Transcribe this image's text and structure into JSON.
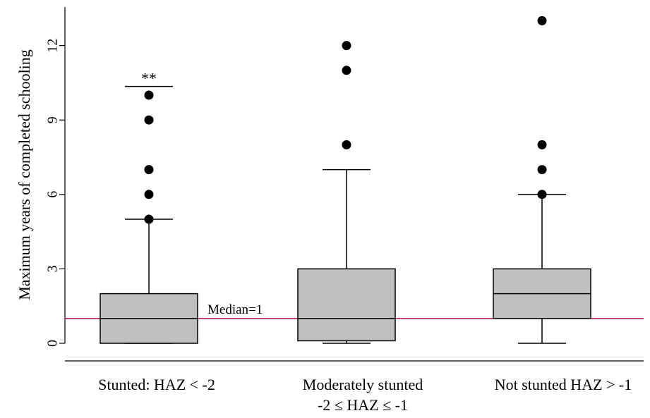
{
  "chart_data": {
    "type": "boxplot",
    "ylabel": "Maximum years of completed schooling",
    "ylim": [
      -0.6,
      13.5
    ],
    "yticks": [
      0,
      3,
      6,
      9,
      12
    ],
    "groups": [
      {
        "label_lines": [
          "Stunted: HAZ < -2"
        ],
        "whisker_low": 0,
        "q1": 0,
        "median": 1,
        "q3": 2,
        "whisker_high": 5,
        "outliers": [
          5,
          6,
          7,
          9,
          10
        ],
        "sig_annotation": "**",
        "sig_level": 10.35
      },
      {
        "label_lines": [
          "Moderately stunted",
          "-2 ≤ HAZ ≤ -1"
        ],
        "whisker_low": 0,
        "q1": 0.1,
        "median": 1,
        "q3": 3,
        "whisker_high": 7,
        "outliers": [
          8,
          11,
          12
        ]
      },
      {
        "label_lines": [
          "Not stunted HAZ > -1"
        ],
        "whisker_low": 0,
        "q1": 1,
        "median": 2,
        "q3": 3,
        "whisker_high": 6,
        "outliers": [
          6,
          7,
          8,
          13
        ]
      }
    ],
    "reference_line": {
      "value": 1,
      "label": "Median=1",
      "color": "#c2185b"
    },
    "box_fill": "#c0c0c0"
  }
}
